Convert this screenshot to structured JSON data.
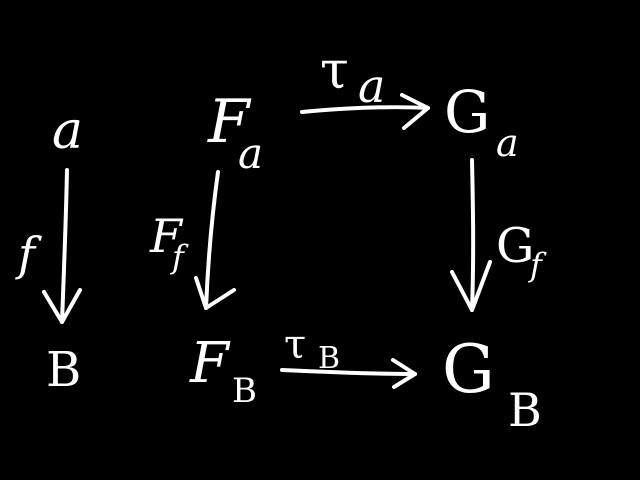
{
  "diagram": {
    "background": "#000000",
    "ink_color": "#ffffff",
    "objects": {
      "a": "a",
      "b": "B",
      "fa": {
        "base": "F",
        "sub": "a"
      },
      "fb": {
        "base": "F",
        "sub": "B"
      },
      "ga": {
        "base": "G",
        "sub": "a"
      },
      "gb": {
        "base": "G",
        "sub": "B"
      }
    },
    "morphisms": {
      "f": "f",
      "ff": {
        "base": "F",
        "sub": "f"
      },
      "gf": {
        "base": "G",
        "sub": "f"
      },
      "tau_a": {
        "base": "τ",
        "sub": "a"
      },
      "tau_b": {
        "base": "τ",
        "sub": "B"
      }
    }
  }
}
